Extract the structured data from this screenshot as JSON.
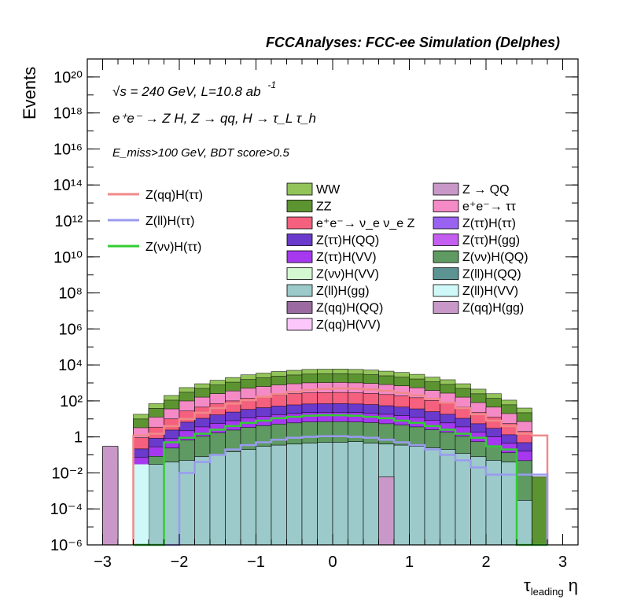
{
  "header": {
    "title": "FCCAnalyses: FCC-ee Simulation (Delphes)"
  },
  "annotations": {
    "line1": "√s = 240 GeV, L=10.8 ab",
    "line1_sup": "-1",
    "line2": "e⁺e⁻ → Z H, Z → qq, H → τ_L τ_h",
    "line3": "E_miss>100 GeV, BDT score>0.5"
  },
  "chart_data": {
    "type": "area",
    "title": "",
    "xlabel": "τ_leading η",
    "ylabel": "Events",
    "xlim": [
      -3.2,
      3.2
    ],
    "ylim": [
      1e-06,
      1e+21
    ],
    "yscale": "log",
    "x_ticks": [
      "−3",
      "−2",
      "−1",
      "0",
      "1",
      "2",
      "3"
    ],
    "y_ticks": [
      "10⁻⁶",
      "10⁻⁴",
      "10⁻²",
      "1",
      "10²",
      "10⁴",
      "10⁶",
      "10⁸",
      "10¹⁰",
      "10¹²",
      "10¹⁴",
      "10¹⁶",
      "10¹⁸",
      "10²⁰"
    ],
    "bin_width": 0.2,
    "stack_totals": [
      {
        "x0": -3.0,
        "x1": -2.8,
        "value": 0.3
      },
      {
        "x0": -2.6,
        "x1": -2.4,
        "value": 18
      },
      {
        "x0": -2.4,
        "x1": -2.2,
        "value": 70
      },
      {
        "x0": -2.2,
        "x1": -2.0,
        "value": 200
      },
      {
        "x0": -2.0,
        "x1": -1.8,
        "value": 550
      },
      {
        "x0": -1.8,
        "x1": -1.6,
        "value": 900
      },
      {
        "x0": -1.6,
        "x1": -1.4,
        "value": 1400
      },
      {
        "x0": -1.4,
        "x1": -1.2,
        "value": 2000
      },
      {
        "x0": -1.2,
        "x1": -1.0,
        "value": 2800
      },
      {
        "x0": -1.0,
        "x1": -0.8,
        "value": 3500
      },
      {
        "x0": -0.8,
        "x1": -0.6,
        "value": 4300
      },
      {
        "x0": -0.6,
        "x1": -0.4,
        "value": 5000
      },
      {
        "x0": -0.4,
        "x1": -0.2,
        "value": 5600
      },
      {
        "x0": -0.2,
        "x1": 0.0,
        "value": 5800
      },
      {
        "x0": 0.0,
        "x1": 0.2,
        "value": 5900
      },
      {
        "x0": 0.2,
        "x1": 0.4,
        "value": 5600
      },
      {
        "x0": 0.4,
        "x1": 0.6,
        "value": 5200
      },
      {
        "x0": 0.6,
        "x1": 0.8,
        "value": 4500
      },
      {
        "x0": 0.8,
        "x1": 1.0,
        "value": 3800
      },
      {
        "x0": 1.0,
        "x1": 1.2,
        "value": 3000
      },
      {
        "x0": 1.2,
        "x1": 1.4,
        "value": 2100
      },
      {
        "x0": 1.4,
        "x1": 1.6,
        "value": 1500
      },
      {
        "x0": 1.6,
        "x1": 1.8,
        "value": 900
      },
      {
        "x0": 1.8,
        "x1": 2.0,
        "value": 450
      },
      {
        "x0": 2.0,
        "x1": 2.2,
        "value": 250
      },
      {
        "x0": 2.2,
        "x1": 2.4,
        "value": 110
      },
      {
        "x0": 2.4,
        "x1": 2.6,
        "value": 40
      }
    ],
    "stack_layers": [
      {
        "name": "WW",
        "color": "#93c45a",
        "values": [
          0,
          0,
          0,
          0,
          0,
          0,
          0,
          0,
          0,
          0,
          0,
          0,
          0,
          0,
          0,
          0,
          0,
          0,
          0,
          0,
          0,
          0,
          0,
          0,
          0,
          0,
          0,
          0,
          0,
          0,
          0,
          0
        ]
      },
      {
        "name": "ZZ",
        "color": "#5d9432"
      },
      {
        "name": "Z → QQ",
        "color": "#c998c8"
      },
      {
        "name": "e⁺e⁻→ ττ",
        "color": "#f48bc6"
      },
      {
        "name": "e⁺e⁻→ ν_e ν_e Z",
        "color": "#f4607e"
      }
    ],
    "background_layers": [
      {
        "name": "Z(ll)H(gg)",
        "color": "#9ccaca",
        "bins": [
          [
            -2.6,
            -2.4,
            0.0003
          ],
          [
            -2.4,
            -2.2,
            0.03
          ],
          [
            -2.2,
            -2.0,
            0.04
          ],
          [
            -2.0,
            -1.8,
            0.05
          ],
          [
            -1.8,
            -1.6,
            0.08
          ],
          [
            -1.6,
            -1.4,
            0.1
          ],
          [
            -1.4,
            -1.2,
            0.15
          ],
          [
            -1.2,
            -1.0,
            0.2
          ],
          [
            -1.0,
            -0.8,
            0.3
          ],
          [
            -0.8,
            -0.6,
            0.35
          ],
          [
            -0.6,
            -0.4,
            0.4
          ],
          [
            -0.4,
            -0.2,
            0.45
          ],
          [
            -0.2,
            0.0,
            0.5
          ],
          [
            0.0,
            0.2,
            0.5
          ],
          [
            0.2,
            0.4,
            0.55
          ],
          [
            0.4,
            0.6,
            0.45
          ],
          [
            0.6,
            0.8,
            0.4
          ],
          [
            0.8,
            1.0,
            0.35
          ],
          [
            1.0,
            1.2,
            0.3
          ],
          [
            1.2,
            1.4,
            0.25
          ],
          [
            1.4,
            1.6,
            0.2
          ],
          [
            1.6,
            1.8,
            0.12
          ],
          [
            1.8,
            2.0,
            0.08
          ],
          [
            2.0,
            2.2,
            0.05
          ],
          [
            2.2,
            2.4,
            0.04
          ],
          [
            2.4,
            2.6,
            0.0003
          ]
        ]
      },
      {
        "name": "Z → QQ",
        "color": "#c998c8",
        "bins": [
          [
            -3.0,
            -2.8,
            0.3
          ],
          [
            0.6,
            0.8,
            0.006
          ]
        ]
      },
      {
        "name": "ZZ",
        "color": "#5d9432",
        "bins": [
          [
            2.6,
            2.8,
            0.006
          ]
        ]
      }
    ],
    "series": [
      {
        "name": "Z(qq)H(ττ)",
        "color": "#f08a8a",
        "values": [
          [
            -2.6,
            1.2
          ],
          [
            -2.4,
            1.5
          ],
          [
            -2.2,
            4
          ],
          [
            -2.0,
            10
          ],
          [
            -1.8,
            22
          ],
          [
            -1.6,
            40
          ],
          [
            -1.4,
            70
          ],
          [
            -1.2,
            110
          ],
          [
            -1.0,
            170
          ],
          [
            -0.8,
            240
          ],
          [
            -0.6,
            320
          ],
          [
            -0.4,
            400
          ],
          [
            -0.2,
            460
          ],
          [
            0.0,
            500
          ],
          [
            0.2,
            480
          ],
          [
            0.4,
            430
          ],
          [
            0.6,
            360
          ],
          [
            0.8,
            280
          ],
          [
            1.0,
            200
          ],
          [
            1.2,
            130
          ],
          [
            1.4,
            80
          ],
          [
            1.6,
            40
          ],
          [
            1.8,
            18
          ],
          [
            2.0,
            8
          ],
          [
            2.2,
            4
          ],
          [
            2.4,
            1.5
          ],
          [
            2.6,
            1.2
          ]
        ]
      },
      {
        "name": "Z(ll)H(ττ)",
        "color": "#9a9af0",
        "values": [
          [
            -2.6,
            0.0
          ],
          [
            -2.4,
            0.0
          ],
          [
            -2.2,
            0.0
          ],
          [
            -2.0,
            0.01
          ],
          [
            -1.8,
            0.04
          ],
          [
            -1.6,
            0.1
          ],
          [
            -1.4,
            0.2
          ],
          [
            -1.2,
            0.35
          ],
          [
            -1.0,
            0.5
          ],
          [
            -0.8,
            0.7
          ],
          [
            -0.6,
            0.9
          ],
          [
            -0.4,
            1.0
          ],
          [
            -0.2,
            1.1
          ],
          [
            0.0,
            1.1
          ],
          [
            0.2,
            1.0
          ],
          [
            0.4,
            0.9
          ],
          [
            0.6,
            0.7
          ],
          [
            0.8,
            0.5
          ],
          [
            1.0,
            0.35
          ],
          [
            1.2,
            0.2
          ],
          [
            1.4,
            0.1
          ],
          [
            1.6,
            0.05
          ],
          [
            1.8,
            0.02
          ],
          [
            2.0,
            0.008
          ],
          [
            2.2,
            0.008
          ],
          [
            2.4,
            0.008
          ],
          [
            2.6,
            0.008
          ]
        ]
      },
      {
        "name": "Z(νν)H(ττ)",
        "color": "#33cc33",
        "values": [
          [
            -2.6,
            0.0
          ],
          [
            -2.4,
            0.0
          ],
          [
            -2.2,
            0.5
          ],
          [
            -2.0,
            0.9
          ],
          [
            -1.8,
            1.5
          ],
          [
            -1.6,
            2.5
          ],
          [
            -1.4,
            4
          ],
          [
            -1.2,
            6
          ],
          [
            -1.0,
            8
          ],
          [
            -0.8,
            11
          ],
          [
            -0.6,
            13
          ],
          [
            -0.4,
            15
          ],
          [
            -0.2,
            16
          ],
          [
            0.0,
            16
          ],
          [
            0.2,
            15
          ],
          [
            0.4,
            13
          ],
          [
            0.6,
            11
          ],
          [
            0.8,
            8
          ],
          [
            1.0,
            6
          ],
          [
            1.2,
            4
          ],
          [
            1.4,
            2.5
          ],
          [
            1.6,
            1.5
          ],
          [
            1.8,
            0.9
          ],
          [
            2.0,
            0.3
          ],
          [
            2.2,
            0.2
          ],
          [
            2.4,
            0.0
          ],
          [
            2.6,
            0.0
          ]
        ]
      }
    ],
    "legend_lines": [
      {
        "label": "Z(qq)H(ττ)",
        "color": "#f08a8a"
      },
      {
        "label": "Z(ll)H(ττ)",
        "color": "#9a9af0"
      },
      {
        "label": "Z(νν)H(ττ)",
        "color": "#33cc33"
      }
    ],
    "legend_col1": [
      {
        "label": "WW",
        "color": "#93c45a"
      },
      {
        "label": "ZZ",
        "color": "#5d9432"
      },
      {
        "label": "e⁺e⁻→ ν_e ν_e Z",
        "color": "#f4607e"
      },
      {
        "label": "Z(ττ)H(QQ)",
        "color": "#6a3acc"
      },
      {
        "label": "Z(ττ)H(VV)",
        "color": "#a638f0"
      },
      {
        "label": "Z(νν)H(VV)",
        "color": "#d4f8d0"
      },
      {
        "label": "Z(ll)H(gg)",
        "color": "#9ccaca"
      },
      {
        "label": "Z(qq)H(QQ)",
        "color": "#9a6aa0"
      },
      {
        "label": "Z(qq)H(VV)",
        "color": "#fcc8fc"
      }
    ],
    "legend_col2": [
      {
        "label": "Z → QQ",
        "color": "#c998c8"
      },
      {
        "label": "e⁺e⁻→ ττ",
        "color": "#f48bc6"
      },
      {
        "label": "Z(ττ)H(ττ)",
        "color": "#9a62f0"
      },
      {
        "label": "Z(ττ)H(gg)",
        "color": "#c45ef0"
      },
      {
        "label": "Z(νν)H(QQ)",
        "color": "#5e9a62"
      },
      {
        "label": "Z(ll)H(QQ)",
        "color": "#5c9494"
      },
      {
        "label": "Z(ll)H(VV)",
        "color": "#cff8f8"
      },
      {
        "label": "Z(qq)H(gg)",
        "color": "#c898c8"
      }
    ],
    "grid": false,
    "legend_position": "top-right"
  }
}
